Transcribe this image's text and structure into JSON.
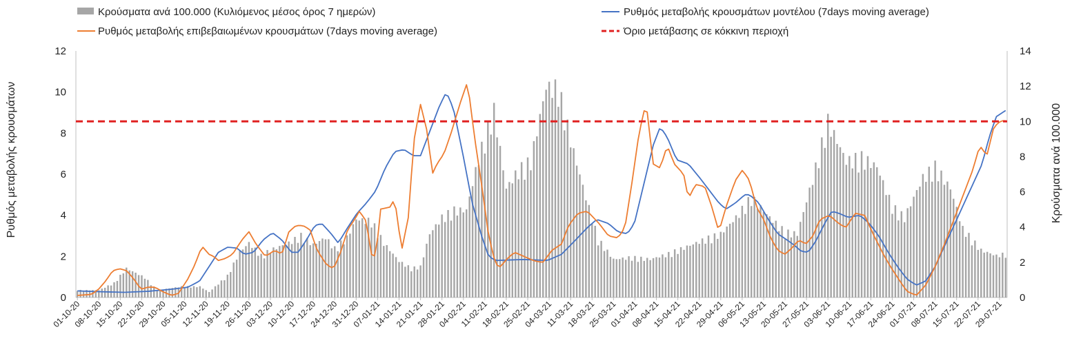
{
  "chart_data": {
    "type": "combo",
    "title": "",
    "ylabel_left": "Ρυθμός μεταβολής κρουσμάτων",
    "ylabel_right": "Κρούσματα ανά 100.000",
    "ylim_left": [
      0,
      12
    ],
    "yticks_left": [
      0,
      2,
      4,
      6,
      8,
      10,
      12
    ],
    "ylim_right": [
      0,
      14
    ],
    "yticks_right": [
      0,
      2,
      4,
      6,
      8,
      10,
      12,
      14
    ],
    "start_date": "2020-10-01",
    "num_days": 304,
    "date_labels": [
      "01-10-20",
      "08-10-20",
      "15-10-20",
      "22-10-20",
      "29-10-20",
      "05-11-20",
      "12-11-20",
      "19-11-20",
      "26-11-20",
      "03-12-20",
      "10-12-20",
      "17-12-20",
      "24-12-20",
      "31-12-20",
      "07-01-21",
      "14-01-21",
      "21-01-21",
      "28-01-21",
      "04-02-21",
      "11-02-21",
      "18-02-21",
      "25-02-21",
      "04-03-21",
      "11-03-21",
      "18-03-21",
      "25-03-21",
      "01-04-21",
      "08-04-21",
      "15-04-21",
      "22-04-21",
      "29-04-21",
      "06-05-21",
      "13-05-21",
      "20-05-21",
      "27-05-21",
      "03-06-21",
      "10-06-21",
      "17-06-21",
      "24-06-21",
      "01-07-21",
      "08-07-21",
      "15-07-21",
      "22-07-21",
      "29-07-21"
    ],
    "legend_placement": "top",
    "series": [
      {
        "name": "Κρούσματα ανά 100.000 (Κυλιόμενος μέσος όρος 7 ημερών)",
        "type": "bar",
        "axis": "right",
        "color": "#a6a6a6",
        "keyframes": [
          [
            0,
            0.4
          ],
          [
            7,
            0.4
          ],
          [
            12,
            0.8
          ],
          [
            16,
            1.6
          ],
          [
            22,
            1.1
          ],
          [
            26,
            0.4
          ],
          [
            34,
            0.6
          ],
          [
            40,
            0.6
          ],
          [
            43,
            0.3
          ],
          [
            49,
            1.2
          ],
          [
            53,
            2.5
          ],
          [
            56,
            3.0
          ],
          [
            60,
            2.3
          ],
          [
            63,
            2.6
          ],
          [
            69,
            3.0
          ],
          [
            73,
            3.4
          ],
          [
            77,
            2.9
          ],
          [
            81,
            3.3
          ],
          [
            84,
            2.7
          ],
          [
            88,
            3.3
          ],
          [
            91,
            4.3
          ],
          [
            96,
            4.2
          ],
          [
            100,
            3.0
          ],
          [
            105,
            2.0
          ],
          [
            109,
            1.6
          ],
          [
            112,
            1.7
          ],
          [
            115,
            3.5
          ],
          [
            119,
            4.4
          ],
          [
            123,
            4.8
          ],
          [
            127,
            4.8
          ],
          [
            131,
            7.7
          ],
          [
            136,
            10.3
          ],
          [
            140,
            6.0
          ],
          [
            144,
            7.0
          ],
          [
            148,
            7.5
          ],
          [
            153,
            11.6
          ],
          [
            157,
            11.5
          ],
          [
            162,
            8.0
          ],
          [
            166,
            5.5
          ],
          [
            170,
            3.2
          ],
          [
            175,
            2.1
          ],
          [
            181,
            2.2
          ],
          [
            187,
            2.1
          ],
          [
            193,
            2.4
          ],
          [
            199,
            2.8
          ],
          [
            205,
            3.2
          ],
          [
            210,
            3.5
          ],
          [
            215,
            4.4
          ],
          [
            220,
            5.5
          ],
          [
            226,
            4.4
          ],
          [
            231,
            3.6
          ],
          [
            235,
            3.5
          ],
          [
            240,
            6.5
          ],
          [
            245,
            9.7
          ],
          [
            251,
            7.5
          ],
          [
            256,
            7.7
          ],
          [
            261,
            7.2
          ],
          [
            266,
            5.0
          ],
          [
            270,
            4.4
          ],
          [
            276,
            6.6
          ],
          [
            280,
            7.2
          ],
          [
            285,
            6.0
          ],
          [
            289,
            3.8
          ],
          [
            295,
            2.6
          ],
          [
            300,
            2.3
          ],
          [
            303,
            2.4
          ]
        ]
      },
      {
        "name": "Ρυθμός μεταβολής κρουσμάτων μοντέλου (7days moving average)",
        "type": "line",
        "axis": "left",
        "color": "#4472c4",
        "keyframes": [
          [
            0,
            0.32
          ],
          [
            10,
            0.28
          ],
          [
            20,
            0.25
          ],
          [
            30,
            0.3
          ],
          [
            40,
            0.4
          ],
          [
            47,
            0.5
          ],
          [
            52,
            0.8
          ],
          [
            56,
            1.5
          ],
          [
            60,
            2.2
          ],
          [
            64,
            2.45
          ],
          [
            68,
            2.4
          ],
          [
            71,
            2.1
          ],
          [
            75,
            2.2
          ],
          [
            79,
            2.8
          ],
          [
            83,
            3.15
          ],
          [
            87,
            2.8
          ],
          [
            91,
            2.2
          ],
          [
            94,
            2.2
          ],
          [
            98,
            2.9
          ],
          [
            101,
            3.5
          ],
          [
            104,
            3.6
          ],
          [
            108,
            3.1
          ],
          [
            111,
            2.65
          ],
          [
            115,
            3.4
          ],
          [
            119,
            4.1
          ],
          [
            123,
            4.6
          ],
          [
            127,
            5.2
          ],
          [
            131,
            6.3
          ],
          [
            135,
            7.1
          ],
          [
            139,
            7.2
          ],
          [
            143,
            6.9
          ],
          [
            146,
            6.9
          ],
          [
            151,
            8.4
          ],
          [
            154,
            9.3
          ],
          [
            157,
            10.0
          ],
          [
            160,
            9.2
          ],
          [
            164,
            7.0
          ],
          [
            168,
            4.6
          ],
          [
            172,
            3.0
          ],
          [
            175,
            2.0
          ],
          [
            178,
            1.8
          ],
          [
            190,
            1.85
          ],
          [
            200,
            1.8
          ],
          [
            206,
            2.1
          ],
          [
            212,
            2.8
          ],
          [
            217,
            3.4
          ],
          [
            221,
            3.8
          ],
          [
            226,
            3.6
          ],
          [
            230,
            3.2
          ],
          [
            234,
            3.1
          ],
          [
            237,
            3.6
          ],
          [
            241,
            5.5
          ],
          [
            245,
            7.4
          ],
          [
            248,
            8.3
          ],
          [
            251,
            7.8
          ],
          [
            255,
            6.7
          ],
          [
            260,
            6.5
          ],
          [
            265,
            5.8
          ],
          [
            269,
            5.2
          ],
          [
            273,
            4.6
          ],
          [
            276,
            4.3
          ],
          [
            280,
            4.6
          ],
          [
            284,
            5.0
          ],
          [
            286,
            5.0
          ],
          [
            290,
            4.6
          ],
          [
            294,
            3.8
          ],
          [
            298,
            3.1
          ],
          [
            302,
            2.8
          ],
          [
            305,
            2.55
          ],
          [
            308,
            2.25
          ],
          [
            311,
            2.2
          ],
          [
            314,
            2.7
          ],
          [
            318,
            3.6
          ],
          [
            321,
            4.2
          ],
          [
            324,
            4.1
          ],
          [
            328,
            3.9
          ],
          [
            333,
            4.0
          ],
          [
            337,
            3.6
          ],
          [
            341,
            3.0
          ],
          [
            345,
            2.2
          ],
          [
            349,
            1.5
          ],
          [
            353,
            0.9
          ],
          [
            357,
            0.6
          ],
          [
            361,
            0.8
          ],
          [
            365,
            1.5
          ],
          [
            369,
            2.5
          ],
          [
            373,
            3.5
          ],
          [
            377,
            4.5
          ],
          [
            381,
            5.5
          ],
          [
            385,
            6.5
          ],
          [
            388,
            7.8
          ],
          [
            391,
            8.8
          ],
          [
            395,
            9.1
          ]
        ]
      },
      {
        "name": "Ρυθμός μεταβολής επιβεβαιωμένων κρουσμάτων (7days moving average)",
        "type": "line",
        "axis": "left",
        "color": "#ed7d31",
        "keyframes": [
          [
            0,
            0.1
          ],
          [
            6,
            0.15
          ],
          [
            9,
            0.4
          ],
          [
            12,
            0.8
          ],
          [
            15,
            1.3
          ],
          [
            18,
            1.4
          ],
          [
            21,
            1.3
          ],
          [
            24,
            0.9
          ],
          [
            27,
            0.4
          ],
          [
            30,
            0.5
          ],
          [
            33,
            0.5
          ],
          [
            36,
            0.3
          ],
          [
            40,
            0.1
          ],
          [
            43,
            0.2
          ],
          [
            47,
            0.9
          ],
          [
            50,
            1.6
          ],
          [
            53,
            2.5
          ],
          [
            56,
            2.1
          ],
          [
            58,
            2.0
          ],
          [
            60,
            1.8
          ],
          [
            63,
            1.9
          ],
          [
            66,
            2.1
          ],
          [
            70,
            2.8
          ],
          [
            73,
            3.2
          ],
          [
            76,
            2.6
          ],
          [
            80,
            2.0
          ],
          [
            84,
            2.3
          ],
          [
            87,
            2.1
          ],
          [
            90,
            3.2
          ],
          [
            93,
            3.5
          ],
          [
            96,
            3.5
          ],
          [
            99,
            3.3
          ],
          [
            102,
            2.3
          ],
          [
            106,
            1.6
          ],
          [
            109,
            1.4
          ],
          [
            112,
            2.2
          ],
          [
            115,
            3.3
          ],
          [
            118,
            3.8
          ],
          [
            120,
            4.2
          ],
          [
            123,
            3.7
          ],
          [
            125,
            2.1
          ],
          [
            127,
            2.0
          ],
          [
            129,
            4.3
          ],
          [
            133,
            4.4
          ],
          [
            135,
            4.8
          ],
          [
            138,
            2.3
          ],
          [
            141,
            4.0
          ],
          [
            143,
            7.5
          ],
          [
            146,
            9.4
          ],
          [
            149,
            8.0
          ],
          [
            151,
            6.0
          ],
          [
            153,
            6.5
          ],
          [
            156,
            7.0
          ],
          [
            159,
            8.0
          ],
          [
            163,
            9.5
          ],
          [
            166,
            10.5
          ],
          [
            169,
            7.8
          ],
          [
            172,
            5.5
          ],
          [
            175,
            3.0
          ],
          [
            178,
            1.6
          ],
          [
            180,
            1.5
          ],
          [
            183,
            1.9
          ],
          [
            186,
            2.2
          ],
          [
            190,
            2.0
          ],
          [
            194,
            1.8
          ],
          [
            198,
            1.7
          ],
          [
            202,
            2.3
          ],
          [
            206,
            2.6
          ],
          [
            209,
            3.5
          ],
          [
            213,
            4.1
          ],
          [
            217,
            4.2
          ],
          [
            222,
            3.6
          ],
          [
            226,
            3.0
          ],
          [
            230,
            2.9
          ],
          [
            233,
            3.4
          ],
          [
            236,
            5.6
          ],
          [
            239,
            8.0
          ],
          [
            242,
            9.5
          ],
          [
            245,
            6.5
          ],
          [
            248,
            6.3
          ],
          [
            251,
            7.4
          ],
          [
            254,
            6.5
          ],
          [
            258,
            6.0
          ],
          [
            260,
            4.8
          ],
          [
            263,
            5.5
          ],
          [
            267,
            5.4
          ],
          [
            270,
            4.4
          ],
          [
            273,
            3.2
          ],
          [
            276,
            4.4
          ],
          [
            280,
            5.7
          ],
          [
            283,
            6.2
          ],
          [
            286,
            5.7
          ],
          [
            289,
            4.4
          ],
          [
            292,
            3.8
          ],
          [
            295,
            2.9
          ],
          [
            298,
            2.3
          ],
          [
            301,
            2.1
          ],
          [
            304,
            2.4
          ],
          [
            307,
            2.8
          ],
          [
            310,
            2.6
          ],
          [
            313,
            3.0
          ],
          [
            316,
            3.8
          ],
          [
            320,
            4.0
          ],
          [
            324,
            3.6
          ],
          [
            327,
            3.4
          ],
          [
            331,
            4.1
          ],
          [
            335,
            4.0
          ],
          [
            339,
            3.0
          ],
          [
            343,
            2.1
          ],
          [
            346,
            1.5
          ],
          [
            350,
            0.8
          ],
          [
            353,
            0.3
          ],
          [
            357,
            0.1
          ],
          [
            361,
            0.6
          ],
          [
            365,
            1.5
          ],
          [
            369,
            2.6
          ],
          [
            373,
            3.8
          ],
          [
            377,
            5.0
          ],
          [
            381,
            6.2
          ],
          [
            384,
            7.4
          ],
          [
            387,
            6.9
          ],
          [
            390,
            8.3
          ],
          [
            393,
            8.6
          ],
          [
            395,
            8.6
          ]
        ]
      },
      {
        "name": "Όριο μετάβασης σε κόκκινη περιοχή",
        "type": "threshold",
        "axis": "right",
        "color": "#e02020",
        "value": 10
      }
    ]
  }
}
